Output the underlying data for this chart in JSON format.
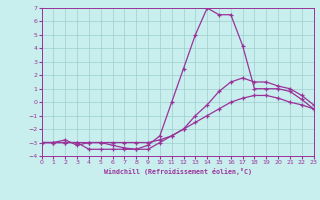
{
  "xlabel": "Windchill (Refroidissement éolien,°C)",
  "x_values": [
    0,
    1,
    2,
    3,
    4,
    5,
    6,
    7,
    8,
    9,
    10,
    11,
    12,
    13,
    14,
    15,
    16,
    17,
    18,
    19,
    20,
    21,
    22,
    23
  ],
  "curve1": [
    -3,
    -3,
    -3,
    -3,
    -3.5,
    -3.5,
    -3.5,
    -3.5,
    -3.5,
    -3.2,
    -2.5,
    0,
    2.5,
    5,
    7,
    6.5,
    6.5,
    4.2,
    1.0,
    1.0,
    1.0,
    0.8,
    0.2,
    -0.5
  ],
  "curve2": [
    -3,
    -3,
    -2.8,
    -3.2,
    -3,
    -3,
    -3.2,
    -3.4,
    -3.5,
    -3.5,
    -3,
    -2.5,
    -2,
    -1,
    -0.2,
    0.8,
    1.5,
    1.8,
    1.5,
    1.5,
    1.2,
    1.0,
    0.5,
    -0.2
  ],
  "curve3": [
    -3,
    -3,
    -3,
    -3,
    -3,
    -3,
    -3,
    -3,
    -3,
    -3,
    -2.8,
    -2.5,
    -2,
    -1.5,
    -1,
    -0.5,
    0,
    0.3,
    0.5,
    0.5,
    0.3,
    0.0,
    -0.2,
    -0.5
  ],
  "line_color": "#993399",
  "bg_color": "#c8eeee",
  "grid_color": "#9ecece",
  "xlim": [
    0,
    23
  ],
  "ylim": [
    -4,
    7
  ],
  "yticks": [
    -4,
    -3,
    -2,
    -1,
    0,
    1,
    2,
    3,
    4,
    5,
    6,
    7
  ],
  "xticks": [
    0,
    1,
    2,
    3,
    4,
    5,
    6,
    7,
    8,
    9,
    10,
    11,
    12,
    13,
    14,
    15,
    16,
    17,
    18,
    19,
    20,
    21,
    22,
    23
  ]
}
